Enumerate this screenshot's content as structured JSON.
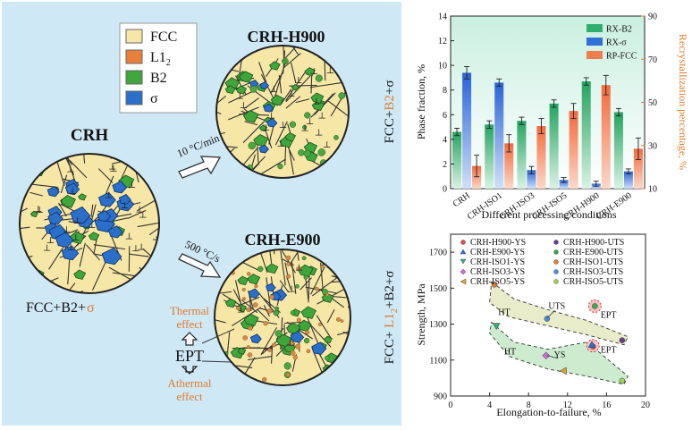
{
  "schematic": {
    "legend": [
      {
        "label": "FCC",
        "color": "#f7e7a6"
      },
      {
        "label": "L1",
        "sub": "2",
        "color": "#e8803a"
      },
      {
        "label": "B2",
        "color": "#3fa63b"
      },
      {
        "label": "σ",
        "color": "#2a6fc9"
      }
    ],
    "crh": {
      "title": "CRH",
      "caption_main": "FCC+B2+",
      "caption_sigma": "σ"
    },
    "crh_h900": {
      "title": "CRH-H900",
      "side_prefix": "FCC+",
      "side_b2": "B2",
      "side_suffix": "+σ"
    },
    "crh_e900": {
      "title": "CRH-E900",
      "side_prefix": "FCC+ ",
      "side_l1": "L1",
      "side_l1_sub": "2",
      "side_suffix": "+B2+σ"
    },
    "arrow_top_label": "10 °C/min",
    "arrow_bottom_label": "500 °C/s",
    "ept": {
      "label": "EPT",
      "thermal_1": "Thermal",
      "thermal_2": "effect",
      "athermal_1": "Athermal",
      "athermal_2": "effect"
    },
    "colors": {
      "panel_bg": "#cfe8f6",
      "fcc": "#f7e7a6",
      "b2": "#3fa63b",
      "sigma": "#2a6fc9",
      "l12": "#e8803a",
      "accent_orange": "#e07b2a"
    }
  },
  "chart_data": [
    {
      "type": "bar",
      "categories": [
        "CRH",
        "CRH-ISO1",
        "CRH-ISO3",
        "CRH-ISO5",
        "CRH-H900",
        "CRH-E900"
      ],
      "xlabel": "Different processing conditions",
      "ylabel": "Phase fraction, %",
      "ylabel_right": "Recrystallization percentage, %",
      "ylim": [
        0,
        14
      ],
      "yticks": [
        0,
        2,
        4,
        6,
        8,
        10,
        12,
        14
      ],
      "ylim_right": [
        10,
        90
      ],
      "yticks_right": [
        10,
        30,
        50,
        70,
        90
      ],
      "legend_position": "top-right",
      "series": [
        {
          "name": "RX-B2",
          "axis": "left",
          "color": "#2fae6e",
          "values": [
            4.6,
            5.2,
            5.5,
            6.9,
            8.7,
            6.2
          ],
          "errors": [
            0.3,
            0.3,
            0.3,
            0.3,
            0.3,
            0.3
          ]
        },
        {
          "name": "RX-σ",
          "axis": "left",
          "color": "#2f6fd8",
          "values": [
            9.4,
            8.6,
            1.5,
            0.7,
            0.4,
            1.4
          ],
          "errors": [
            0.5,
            0.3,
            0.3,
            0.2,
            0.2,
            0.2
          ]
        },
        {
          "name": "RP-FCC",
          "axis": "right",
          "color": "#f07d50",
          "values": [
            20.5,
            31.0,
            39.0,
            46.0,
            58.0,
            28.5
          ],
          "errors": [
            5.0,
            4.0,
            3.5,
            3.5,
            4.5,
            5.0
          ]
        }
      ]
    },
    {
      "type": "scatter",
      "xlabel": "Elongation-to-failure, %",
      "ylabel": "Strength, MPa",
      "xlim": [
        0,
        20
      ],
      "xticks": [
        0,
        4,
        8,
        12,
        16,
        20
      ],
      "ylim": [
        900,
        1800
      ],
      "yticks": [
        900,
        1100,
        1300,
        1500,
        1700
      ],
      "legend_position": "top",
      "annotations": [
        {
          "text": "HT",
          "x": 5.5,
          "y": 1350
        },
        {
          "text": "UTS",
          "x": 10.9,
          "y": 1385
        },
        {
          "text": "EPT",
          "x": 16.2,
          "y": 1335
        },
        {
          "text": "HT",
          "x": 6.1,
          "y": 1130
        },
        {
          "text": "YS",
          "x": 11.2,
          "y": 1115
        },
        {
          "text": "EPT",
          "x": 16.2,
          "y": 1140
        }
      ],
      "series": [
        {
          "name": "CRH-H900-YS",
          "marker": "circle",
          "color": "#e84a4a",
          "x": [
            14.6
          ],
          "y": [
            1175
          ]
        },
        {
          "name": "CRH-H900-UTS",
          "marker": "circle",
          "color": "#6b3c8f",
          "x": [
            17.6
          ],
          "y": [
            1210
          ]
        },
        {
          "name": "CRH-E900-YS",
          "marker": "triangle-up",
          "color": "#2f6fd8",
          "x": [
            14.5
          ],
          "y": [
            1185
          ]
        },
        {
          "name": "CRH-E900-UTS",
          "marker": "circle",
          "color": "#3ea84a",
          "x": [
            14.8
          ],
          "y": [
            1400
          ]
        },
        {
          "name": "CRH-ISO1-YS",
          "marker": "triangle-down",
          "color": "#35b07a",
          "x": [
            4.7
          ],
          "y": [
            1290
          ]
        },
        {
          "name": "CRH-ISO1-UTS",
          "marker": "circle",
          "color": "#e8803a",
          "x": [
            4.5
          ],
          "y": [
            1520
          ]
        },
        {
          "name": "CRH-ISO3-YS",
          "marker": "diamond",
          "color": "#c86fd6",
          "x": [
            9.8
          ],
          "y": [
            1125
          ]
        },
        {
          "name": "CRH-ISO3-UTS",
          "marker": "circle",
          "color": "#4a8fe0",
          "x": [
            9.9
          ],
          "y": [
            1330
          ]
        },
        {
          "name": "CRH-ISO5-YS",
          "marker": "triangle-left",
          "color": "#d9a23a",
          "x": [
            11.6
          ],
          "y": [
            1040
          ]
        },
        {
          "name": "CRH-ISO5-UTS",
          "marker": "circle",
          "color": "#9fd35a",
          "x": [
            17.6
          ],
          "y": [
            985
          ]
        }
      ]
    }
  ]
}
